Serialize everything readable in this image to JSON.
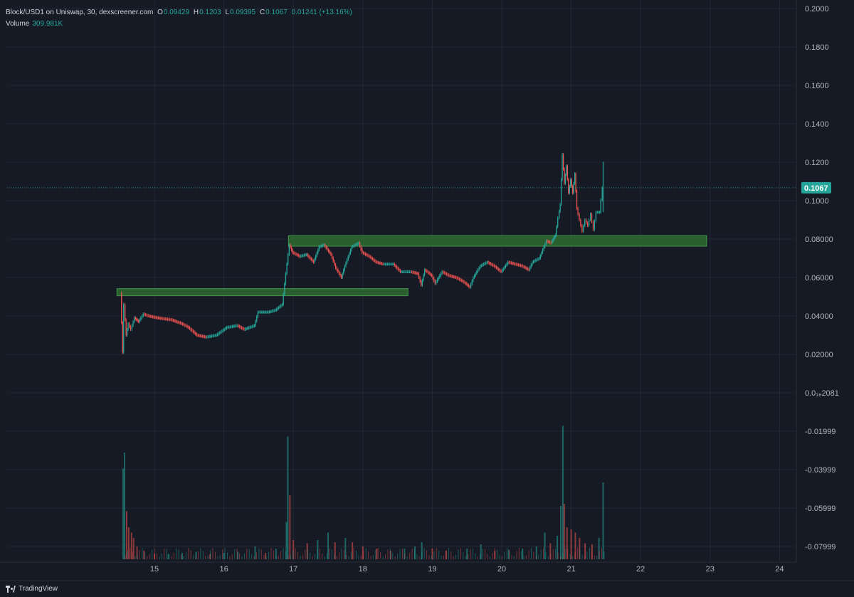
{
  "legend": {
    "symbol": "Block/USD1 on Uniswap, 30, dexscreener.com",
    "open_label": "O",
    "open": "0.09429",
    "high_label": "H",
    "high": "0.1203",
    "low_label": "L",
    "low": "0.09395",
    "close_label": "C",
    "close": "0.1067",
    "change": "0.01241 (+13.16%)",
    "volume_label": "Volume",
    "volume_value": "309.981K"
  },
  "brand": "TradingView",
  "colors": {
    "background": "#161a25",
    "grid": "#232734",
    "up": "#26a69a",
    "down": "#ef5350",
    "zone_fill": "#2e6b30",
    "zone_border": "#4caf50",
    "text": "#b2b5be"
  },
  "chart_data": {
    "type": "candlestick",
    "price_axis": {
      "ticks": [
        "0.2000",
        "0.1800",
        "0.1600",
        "0.1400",
        "0.1200",
        "0.1000",
        "0.08000",
        "0.06000",
        "0.04000",
        "0.02000",
        "0.0₁₆2081",
        "-0.01999",
        "-0.03999",
        "-0.05999",
        "-0.07999"
      ],
      "tick_values": [
        0.2,
        0.18,
        0.16,
        0.14,
        0.12,
        0.1,
        0.08,
        0.06,
        0.04,
        0.02,
        0.0,
        -0.01999,
        -0.03999,
        -0.05999,
        -0.07999
      ],
      "last_price": 0.1067,
      "last_price_label": "0.1067"
    },
    "time_axis": {
      "ticks": [
        "15",
        "16",
        "17",
        "18",
        "19",
        "20",
        "21",
        "22",
        "23",
        "24"
      ],
      "tick_values": [
        15,
        16,
        17,
        18,
        19,
        20,
        21,
        22,
        23,
        24
      ]
    },
    "price_path": [
      [
        14.52,
        0.052
      ],
      [
        14.55,
        0.021
      ],
      [
        14.57,
        0.046
      ],
      [
        14.6,
        0.03
      ],
      [
        14.63,
        0.036
      ],
      [
        14.67,
        0.033
      ],
      [
        14.72,
        0.039
      ],
      [
        14.78,
        0.037
      ],
      [
        14.85,
        0.041
      ],
      [
        14.92,
        0.04
      ],
      [
        15.05,
        0.039
      ],
      [
        15.25,
        0.038
      ],
      [
        15.4,
        0.036
      ],
      [
        15.5,
        0.034
      ],
      [
        15.62,
        0.03
      ],
      [
        15.75,
        0.029
      ],
      [
        15.9,
        0.03
      ],
      [
        16.05,
        0.034
      ],
      [
        16.2,
        0.035
      ],
      [
        16.3,
        0.033
      ],
      [
        16.45,
        0.035
      ],
      [
        16.5,
        0.042
      ],
      [
        16.65,
        0.042
      ],
      [
        16.75,
        0.043
      ],
      [
        16.85,
        0.046
      ],
      [
        16.9,
        0.062
      ],
      [
        16.95,
        0.077
      ],
      [
        17.0,
        0.073
      ],
      [
        17.1,
        0.071
      ],
      [
        17.2,
        0.072
      ],
      [
        17.3,
        0.068
      ],
      [
        17.38,
        0.076
      ],
      [
        17.45,
        0.077
      ],
      [
        17.55,
        0.072
      ],
      [
        17.62,
        0.065
      ],
      [
        17.7,
        0.06
      ],
      [
        17.75,
        0.066
      ],
      [
        17.85,
        0.076
      ],
      [
        17.95,
        0.078
      ],
      [
        18.0,
        0.073
      ],
      [
        18.1,
        0.071
      ],
      [
        18.2,
        0.068
      ],
      [
        18.3,
        0.067
      ],
      [
        18.45,
        0.067
      ],
      [
        18.55,
        0.063
      ],
      [
        18.7,
        0.063
      ],
      [
        18.8,
        0.062
      ],
      [
        18.85,
        0.056
      ],
      [
        18.9,
        0.064
      ],
      [
        19.0,
        0.061
      ],
      [
        19.05,
        0.057
      ],
      [
        19.15,
        0.063
      ],
      [
        19.25,
        0.061
      ],
      [
        19.35,
        0.06
      ],
      [
        19.45,
        0.058
      ],
      [
        19.55,
        0.055
      ],
      [
        19.6,
        0.06
      ],
      [
        19.7,
        0.066
      ],
      [
        19.8,
        0.068
      ],
      [
        19.9,
        0.066
      ],
      [
        20.0,
        0.063
      ],
      [
        20.1,
        0.068
      ],
      [
        20.2,
        0.067
      ],
      [
        20.3,
        0.066
      ],
      [
        20.4,
        0.064
      ],
      [
        20.45,
        0.068
      ],
      [
        20.55,
        0.07
      ],
      [
        20.65,
        0.079
      ],
      [
        20.72,
        0.078
      ],
      [
        20.78,
        0.082
      ],
      [
        20.82,
        0.091
      ],
      [
        20.85,
        0.098
      ],
      [
        20.88,
        0.124
      ],
      [
        20.91,
        0.109
      ],
      [
        20.94,
        0.118
      ],
      [
        20.97,
        0.104
      ],
      [
        21.0,
        0.111
      ],
      [
        21.03,
        0.104
      ],
      [
        21.06,
        0.114
      ],
      [
        21.09,
        0.096
      ],
      [
        21.13,
        0.09
      ],
      [
        21.17,
        0.084
      ],
      [
        21.21,
        0.09
      ],
      [
        21.25,
        0.087
      ],
      [
        21.29,
        0.093
      ],
      [
        21.33,
        0.085
      ],
      [
        21.37,
        0.094
      ],
      [
        21.42,
        0.094
      ],
      [
        21.46,
        0.1067
      ]
    ],
    "volume": [
      [
        14.55,
        0.85
      ],
      [
        14.57,
        1.0
      ],
      [
        14.6,
        0.45
      ],
      [
        14.63,
        0.3
      ],
      [
        14.67,
        0.25
      ],
      [
        14.7,
        0.2
      ],
      [
        14.75,
        0.12
      ],
      [
        14.85,
        0.08
      ],
      [
        15.0,
        0.05
      ],
      [
        15.2,
        0.05
      ],
      [
        15.4,
        0.06
      ],
      [
        15.6,
        0.07
      ],
      [
        15.8,
        0.05
      ],
      [
        16.0,
        0.06
      ],
      [
        16.2,
        0.07
      ],
      [
        16.45,
        0.12
      ],
      [
        16.6,
        0.06
      ],
      [
        16.75,
        0.1
      ],
      [
        16.9,
        0.35
      ],
      [
        16.92,
        1.15
      ],
      [
        16.95,
        0.6
      ],
      [
        17.0,
        0.18
      ],
      [
        17.2,
        0.15
      ],
      [
        17.35,
        0.18
      ],
      [
        17.5,
        0.25
      ],
      [
        17.6,
        0.16
      ],
      [
        17.75,
        0.2
      ],
      [
        17.85,
        0.16
      ],
      [
        18.0,
        0.12
      ],
      [
        18.2,
        0.1
      ],
      [
        18.4,
        0.08
      ],
      [
        18.6,
        0.1
      ],
      [
        18.75,
        0.12
      ],
      [
        18.85,
        0.16
      ],
      [
        19.0,
        0.1
      ],
      [
        19.2,
        0.08
      ],
      [
        19.5,
        0.1
      ],
      [
        19.7,
        0.14
      ],
      [
        19.9,
        0.08
      ],
      [
        20.1,
        0.09
      ],
      [
        20.3,
        0.1
      ],
      [
        20.5,
        0.12
      ],
      [
        20.62,
        0.25
      ],
      [
        20.7,
        0.15
      ],
      [
        20.8,
        0.22
      ],
      [
        20.85,
        0.5
      ],
      [
        20.88,
        1.25
      ],
      [
        20.9,
        0.52
      ],
      [
        20.94,
        0.3
      ],
      [
        21.0,
        0.28
      ],
      [
        21.06,
        0.25
      ],
      [
        21.12,
        0.2
      ],
      [
        21.2,
        0.15
      ],
      [
        21.3,
        0.14
      ],
      [
        21.4,
        0.2
      ],
      [
        21.46,
        0.72
      ]
    ],
    "zones": [
      {
        "x_start": 14.46,
        "x_end": 18.65,
        "y_low": 0.0505,
        "y_high": 0.0542
      },
      {
        "x_start": 16.93,
        "x_end": 22.95,
        "y_low": 0.0763,
        "y_high": 0.0818
      }
    ]
  }
}
